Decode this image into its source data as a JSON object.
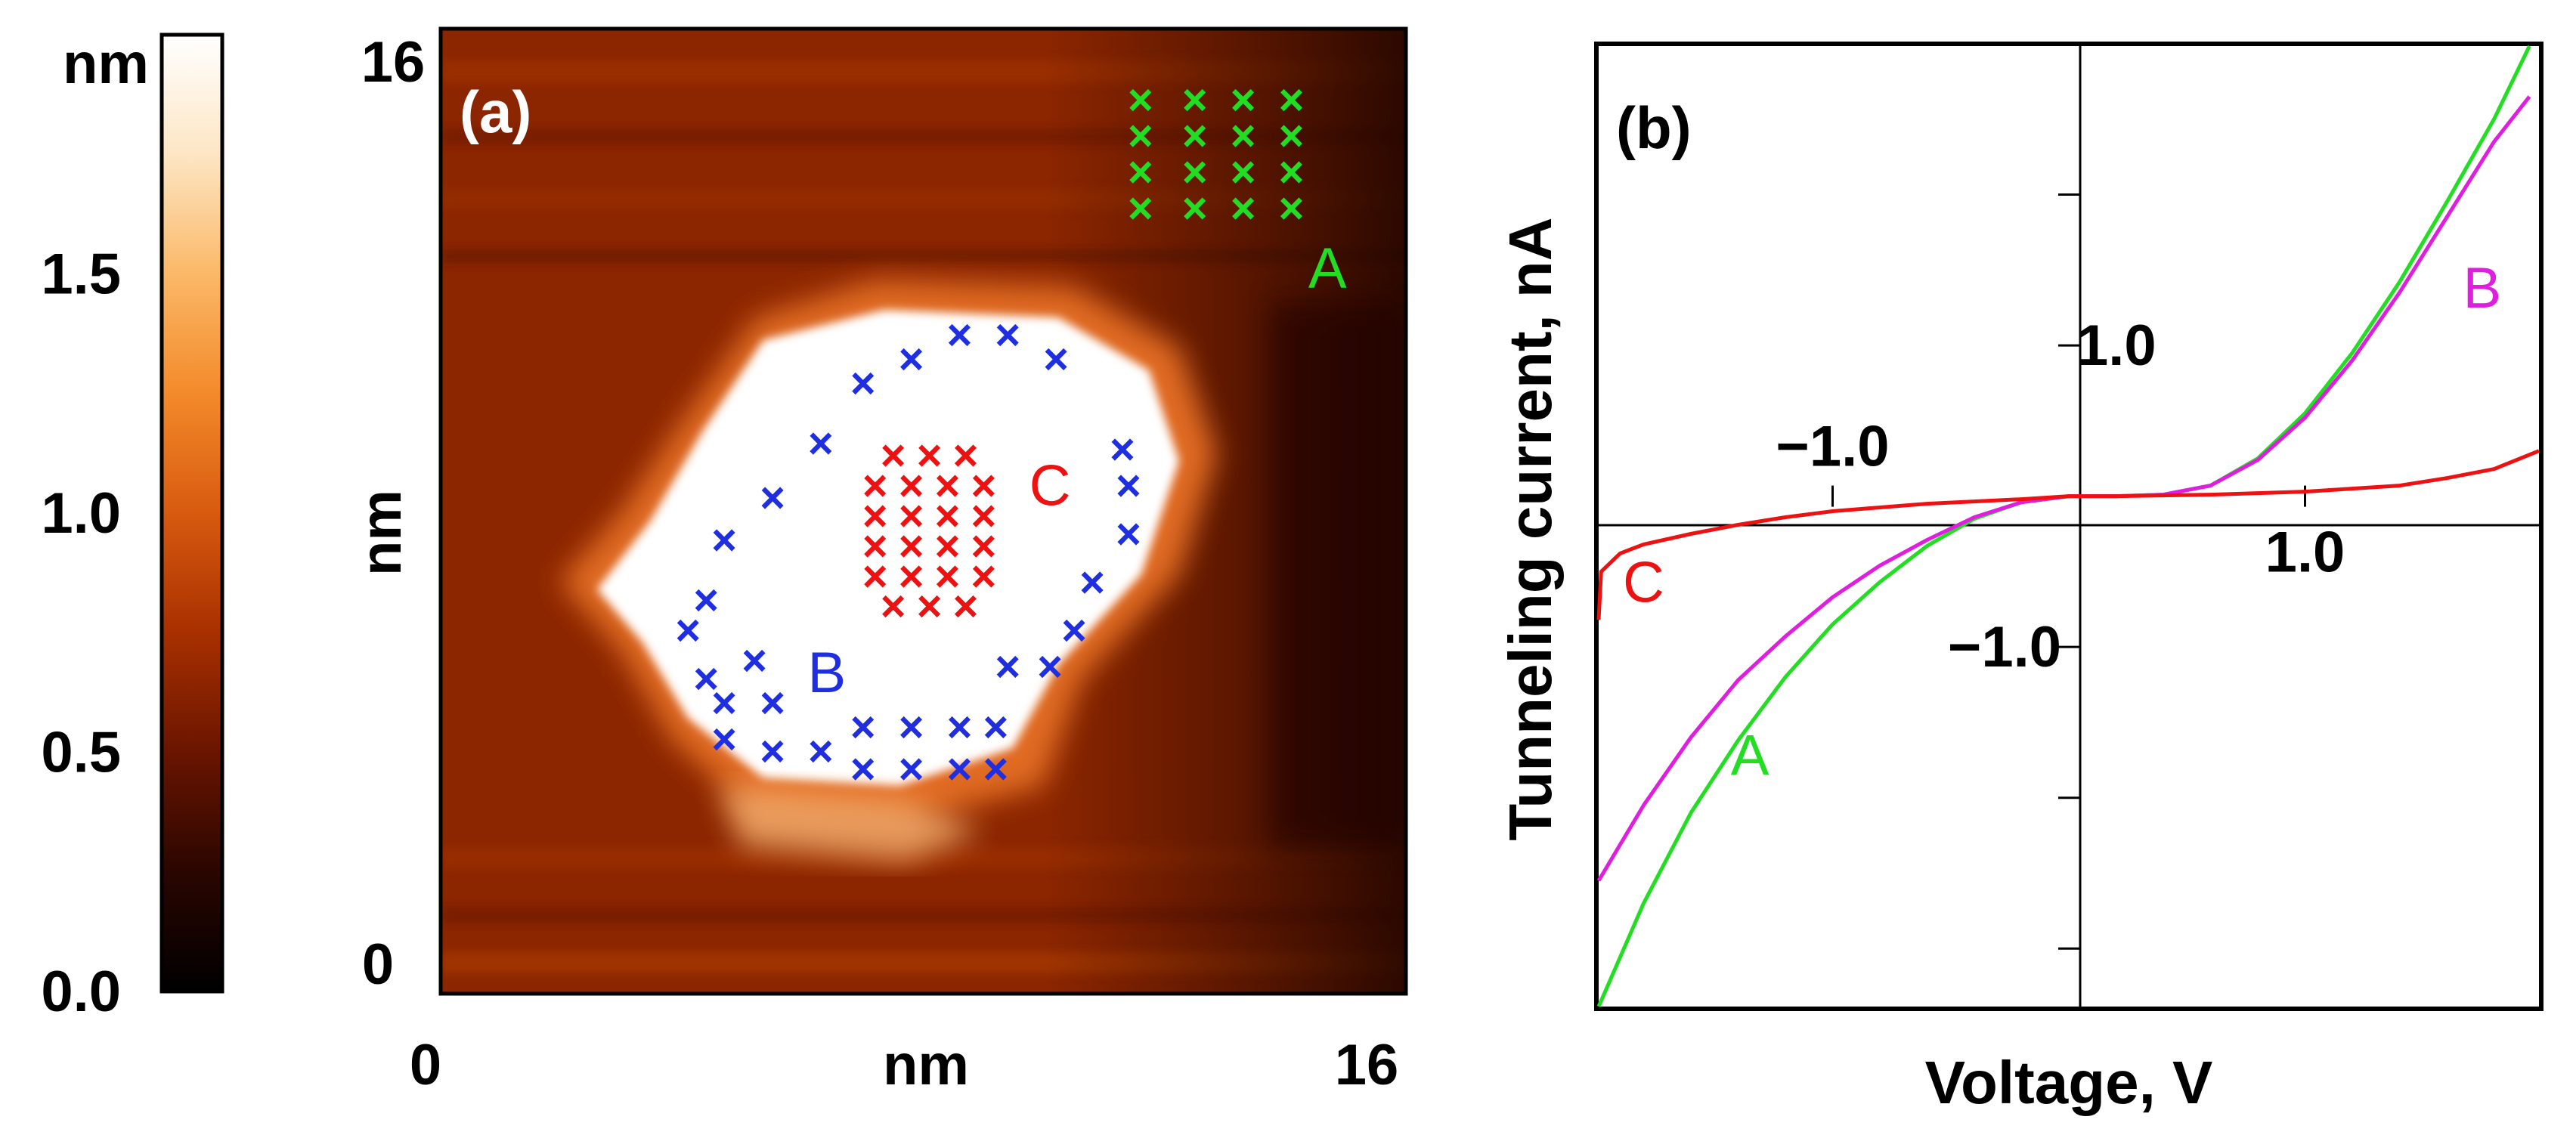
{
  "colorbar": {
    "unit": "nm",
    "ticks": [
      {
        "label": "0.0",
        "value": 0.0
      },
      {
        "label": "0.5",
        "value": 0.5
      },
      {
        "label": "1.0",
        "value": 1.0
      },
      {
        "label": "1.5",
        "value": 1.5
      }
    ],
    "range": [
      0,
      2.0
    ],
    "stops": [
      "#000000",
      "#2a0600",
      "#6a1500",
      "#a83000",
      "#d85a10",
      "#f38a2a",
      "#fbb868",
      "#fde6c4",
      "#ffffff"
    ]
  },
  "chart_data": [
    {
      "type": "heatmap",
      "panel": "(a)",
      "xlabel": "nm",
      "ylabel": "nm",
      "xlim": [
        0,
        16
      ],
      "ylim": [
        0,
        16
      ],
      "x_tick_labels": [
        "0",
        "16"
      ],
      "y_tick_labels": [
        "0",
        "16"
      ],
      "colors": {
        "background": "#8c2600",
        "island_rim": "#f5a050",
        "island_core": "#ffffff",
        "dark_stripe": "#2a0600"
      },
      "markers": [
        {
          "group": "A",
          "label": "A",
          "color": "#22dd22",
          "symbol": "×",
          "label_position_nm": [
            14.7,
            11.7
          ],
          "points": [
            [
              11.6,
              14.8
            ],
            [
              12.5,
              14.8
            ],
            [
              13.3,
              14.8
            ],
            [
              14.1,
              14.8
            ],
            [
              11.6,
              14.2
            ],
            [
              12.5,
              14.2
            ],
            [
              13.3,
              14.2
            ],
            [
              14.1,
              14.2
            ],
            [
              11.6,
              13.6
            ],
            [
              12.5,
              13.6
            ],
            [
              13.3,
              13.6
            ],
            [
              14.1,
              13.6
            ],
            [
              11.6,
              13.0
            ],
            [
              12.5,
              13.0
            ],
            [
              13.3,
              13.0
            ],
            [
              14.1,
              13.0
            ]
          ]
        },
        {
          "group": "B",
          "label": "B",
          "color": "#1f2fe0",
          "symbol": "×",
          "label_position_nm": [
            6.4,
            5.0
          ],
          "points": [
            [
              8.6,
              10.9
            ],
            [
              9.4,
              10.9
            ],
            [
              7.8,
              10.5
            ],
            [
              10.2,
              10.5
            ],
            [
              7.0,
              10.1
            ],
            [
              6.3,
              9.1
            ],
            [
              11.3,
              9.0
            ],
            [
              5.5,
              8.2
            ],
            [
              11.4,
              8.4
            ],
            [
              4.7,
              7.5
            ],
            [
              11.4,
              7.6
            ],
            [
              4.4,
              6.5
            ],
            [
              10.8,
              6.8
            ],
            [
              4.1,
              6.0
            ],
            [
              10.5,
              6.0
            ],
            [
              4.4,
              5.2
            ],
            [
              5.2,
              5.5
            ],
            [
              9.4,
              5.4
            ],
            [
              10.1,
              5.4
            ],
            [
              4.7,
              4.8
            ],
            [
              5.5,
              4.8
            ],
            [
              4.7,
              4.2
            ],
            [
              5.5,
              4.0
            ],
            [
              6.3,
              4.0
            ],
            [
              7.0,
              4.4
            ],
            [
              7.8,
              4.4
            ],
            [
              8.6,
              4.4
            ],
            [
              9.2,
              4.4
            ],
            [
              7.0,
              3.7
            ],
            [
              7.8,
              3.7
            ],
            [
              8.6,
              3.7
            ],
            [
              9.2,
              3.7
            ]
          ]
        },
        {
          "group": "C",
          "label": "C",
          "color": "#ee1111",
          "symbol": "×",
          "label_position_nm": [
            10.1,
            8.1
          ],
          "points": [
            [
              7.5,
              8.9
            ],
            [
              8.1,
              8.9
            ],
            [
              8.7,
              8.9
            ],
            [
              7.2,
              8.4
            ],
            [
              7.8,
              8.4
            ],
            [
              8.4,
              8.4
            ],
            [
              9.0,
              8.4
            ],
            [
              7.2,
              7.9
            ],
            [
              7.8,
              7.9
            ],
            [
              8.4,
              7.9
            ],
            [
              9.0,
              7.9
            ],
            [
              7.2,
              7.4
            ],
            [
              7.8,
              7.4
            ],
            [
              8.4,
              7.4
            ],
            [
              9.0,
              7.4
            ],
            [
              7.2,
              6.9
            ],
            [
              7.8,
              6.9
            ],
            [
              8.4,
              6.9
            ],
            [
              9.0,
              6.9
            ],
            [
              7.5,
              6.4
            ],
            [
              8.1,
              6.4
            ],
            [
              8.7,
              6.4
            ]
          ]
        }
      ]
    },
    {
      "type": "line",
      "panel": "(b)",
      "xlabel": "Voltage, V",
      "ylabel": "Tunneling current, nA",
      "xlim": [
        -2.0,
        2.0
      ],
      "ylim": [
        -3.4,
        3.0
      ],
      "x_tick_values": [
        -2.0,
        -1.0,
        1.0,
        2.0
      ],
      "y_tick_values": [
        -3.0,
        -2.0,
        -1.0,
        1.0,
        2.0,
        3.0
      ],
      "x_tick_labels": [
        {
          "text": "−1.0",
          "value": -1.0
        },
        {
          "text": "1.0",
          "value": 1.0
        }
      ],
      "y_tick_labels": [
        {
          "text": "1.0",
          "value": 1.0
        },
        {
          "text": "−1.0",
          "value": -1.0
        }
      ],
      "series": [
        {
          "name": "A",
          "label": "A",
          "color": "#22dd22",
          "label_position": [
            -1.35,
            -1.85
          ],
          "x": [
            -2.0,
            -1.8,
            -1.6,
            -1.4,
            -1.2,
            -1.0,
            -0.8,
            -0.6,
            -0.4,
            -0.2,
            0.0,
            0.2,
            0.4,
            0.6,
            0.8,
            1.0,
            1.2,
            1.4,
            1.6,
            1.8,
            1.95
          ],
          "y": [
            -3.4,
            -2.7,
            -2.1,
            -1.62,
            -1.2,
            -0.85,
            -0.57,
            -0.33,
            -0.15,
            -0.04,
            0.0,
            0.0,
            0.01,
            0.07,
            0.25,
            0.55,
            0.95,
            1.42,
            1.95,
            2.5,
            3.0
          ]
        },
        {
          "name": "B",
          "label": "B",
          "color": "#e01ee0",
          "label_position": [
            1.75,
            1.25
          ],
          "x": [
            -2.0,
            -1.8,
            -1.6,
            -1.4,
            -1.2,
            -1.0,
            -0.8,
            -0.6,
            -0.4,
            -0.2,
            0.0,
            0.2,
            0.4,
            0.6,
            0.8,
            1.0,
            1.2,
            1.4,
            1.6,
            1.8,
            1.95
          ],
          "y": [
            -2.55,
            -2.05,
            -1.6,
            -1.22,
            -0.93,
            -0.67,
            -0.46,
            -0.29,
            -0.14,
            -0.04,
            0.0,
            0.0,
            0.01,
            0.07,
            0.24,
            0.52,
            0.9,
            1.35,
            1.85,
            2.35,
            2.65
          ]
        },
        {
          "name": "C",
          "label": "C",
          "color": "#ee1111",
          "label_position": [
            -1.8,
            -0.7
          ],
          "x": [
            -2.0,
            -1.98,
            -1.9,
            -1.8,
            -1.6,
            -1.4,
            -1.2,
            -1.0,
            -0.6,
            -0.2,
            0.0,
            0.2,
            0.6,
            1.0,
            1.4,
            1.6,
            1.8,
            2.0
          ],
          "y": [
            -0.82,
            -0.5,
            -0.38,
            -0.32,
            -0.25,
            -0.19,
            -0.14,
            -0.1,
            -0.05,
            -0.02,
            0.0,
            0.0,
            0.01,
            0.03,
            0.07,
            0.12,
            0.18,
            0.3
          ]
        }
      ]
    }
  ]
}
